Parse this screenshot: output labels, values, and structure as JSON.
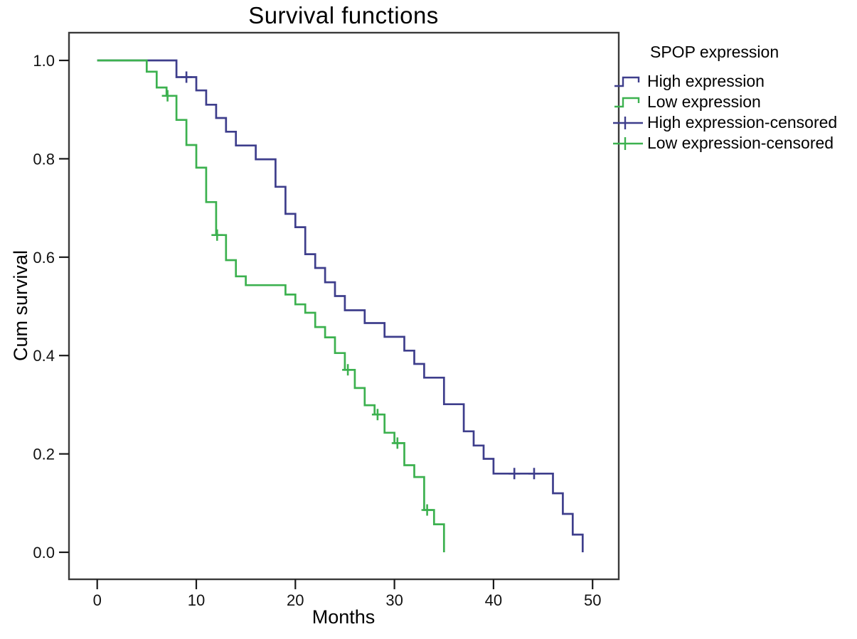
{
  "chart_data": {
    "type": "line",
    "variant": "kaplan_meier_step",
    "title": "Survival functions",
    "xlabel": "Months",
    "ylabel": "Cum survival",
    "xlim": [
      0,
      50
    ],
    "ylim": [
      0.0,
      1.0
    ],
    "grid": false,
    "x_ticks": [
      "0",
      "10",
      "20",
      "30",
      "40",
      "50"
    ],
    "x_tick_values": [
      0,
      10,
      20,
      30,
      40,
      50
    ],
    "y_ticks": [
      "0.0",
      "0.2",
      "0.4",
      "0.6",
      "0.8",
      "1.0"
    ],
    "y_tick_values": [
      0.0,
      0.2,
      0.4,
      0.6,
      0.8,
      1.0
    ],
    "legend": {
      "title": "SPOP expression",
      "position": "outside-top-right",
      "entries": [
        {
          "label": "High expression",
          "type": "step-line",
          "color": "#3e3e8c"
        },
        {
          "label": "Low expression",
          "type": "step-line",
          "color": "#3cb14f"
        },
        {
          "label": "High expression-censored",
          "type": "censor-cross",
          "color": "#3e3e8c"
        },
        {
          "label": "Low expression-censored",
          "type": "censor-cross",
          "color": "#3cb14f"
        }
      ]
    },
    "series": [
      {
        "name": "High expression",
        "color": "#3e3e8c",
        "start": [
          0,
          1.0
        ],
        "steps": [
          [
            8,
            0.966
          ],
          [
            10,
            0.939
          ],
          [
            11,
            0.91
          ],
          [
            12,
            0.883
          ],
          [
            13,
            0.855
          ],
          [
            14,
            0.827
          ],
          [
            16,
            0.799
          ],
          [
            18,
            0.743
          ],
          [
            19,
            0.688
          ],
          [
            20,
            0.661
          ],
          [
            21,
            0.606
          ],
          [
            22,
            0.578
          ],
          [
            23,
            0.549
          ],
          [
            24,
            0.521
          ],
          [
            25,
            0.492
          ],
          [
            27,
            0.466
          ],
          [
            29,
            0.438
          ],
          [
            31,
            0.41
          ],
          [
            32,
            0.383
          ],
          [
            33,
            0.355
          ],
          [
            35,
            0.301
          ],
          [
            37,
            0.246
          ],
          [
            38,
            0.217
          ],
          [
            39,
            0.19
          ],
          [
            40,
            0.16
          ],
          [
            46,
            0.12
          ],
          [
            47,
            0.078
          ],
          [
            48,
            0.036
          ],
          [
            49,
            0.0
          ]
        ],
        "censored": [
          [
            9,
            0.966
          ],
          [
            42.1,
            0.16
          ],
          [
            44.1,
            0.16
          ]
        ]
      },
      {
        "name": "Low expression",
        "color": "#3cb14f",
        "start": [
          0,
          1.0
        ],
        "steps": [
          [
            5,
            0.977
          ],
          [
            6,
            0.945
          ],
          [
            7,
            0.928
          ],
          [
            8,
            0.879
          ],
          [
            9,
            0.828
          ],
          [
            10,
            0.782
          ],
          [
            11,
            0.712
          ],
          [
            12,
            0.645
          ],
          [
            13,
            0.594
          ],
          [
            14,
            0.561
          ],
          [
            15,
            0.543
          ],
          [
            19,
            0.524
          ],
          [
            20,
            0.504
          ],
          [
            21,
            0.487
          ],
          [
            22,
            0.458
          ],
          [
            23,
            0.437
          ],
          [
            24,
            0.405
          ],
          [
            25,
            0.371
          ],
          [
            26,
            0.334
          ],
          [
            27,
            0.299
          ],
          [
            28,
            0.28
          ],
          [
            29,
            0.243
          ],
          [
            30,
            0.222
          ],
          [
            31,
            0.177
          ],
          [
            32,
            0.153
          ],
          [
            33,
            0.086
          ],
          [
            34,
            0.057
          ],
          [
            35,
            0.0
          ]
        ],
        "censored": [
          [
            7.1,
            0.928
          ],
          [
            12.1,
            0.645
          ],
          [
            25.3,
            0.371
          ],
          [
            28.3,
            0.28
          ],
          [
            30.3,
            0.222
          ],
          [
            33.3,
            0.086
          ]
        ]
      }
    ]
  }
}
